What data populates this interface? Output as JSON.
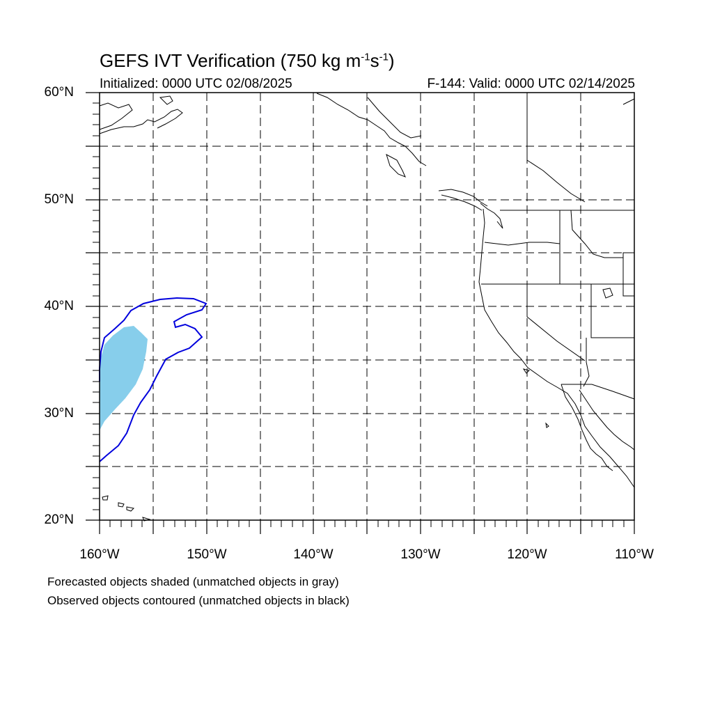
{
  "map": {
    "title_main": "GEFS IVT Verification (750 kg m",
    "title_exp1": "-1",
    "title_mid": "s",
    "title_exp2": "-1",
    "title_end": ")",
    "initialized": "Initialized: 0000 UTC 02/08/2025",
    "valid": "F-144: Valid: 0000 UTC 02/14/2025",
    "lat_labels": [
      "60°N",
      "50°N",
      "40°N",
      "30°N",
      "20°N"
    ],
    "lon_labels": [
      "160°W",
      "150°W",
      "140°W",
      "130°W",
      "120°W",
      "110°W"
    ],
    "extent": {
      "lon": [
        -160,
        -110
      ],
      "lat": [
        20,
        60
      ]
    },
    "legend": [
      "Forecasted objects shaded (unmatched objects in gray)",
      "Observed objects contoured (unmatched objects in black)"
    ],
    "colors": {
      "forecast_fill": "#87ceeb",
      "observed_contour": "#0000dd",
      "coastline": "#000000",
      "grid": "#000000"
    }
  }
}
